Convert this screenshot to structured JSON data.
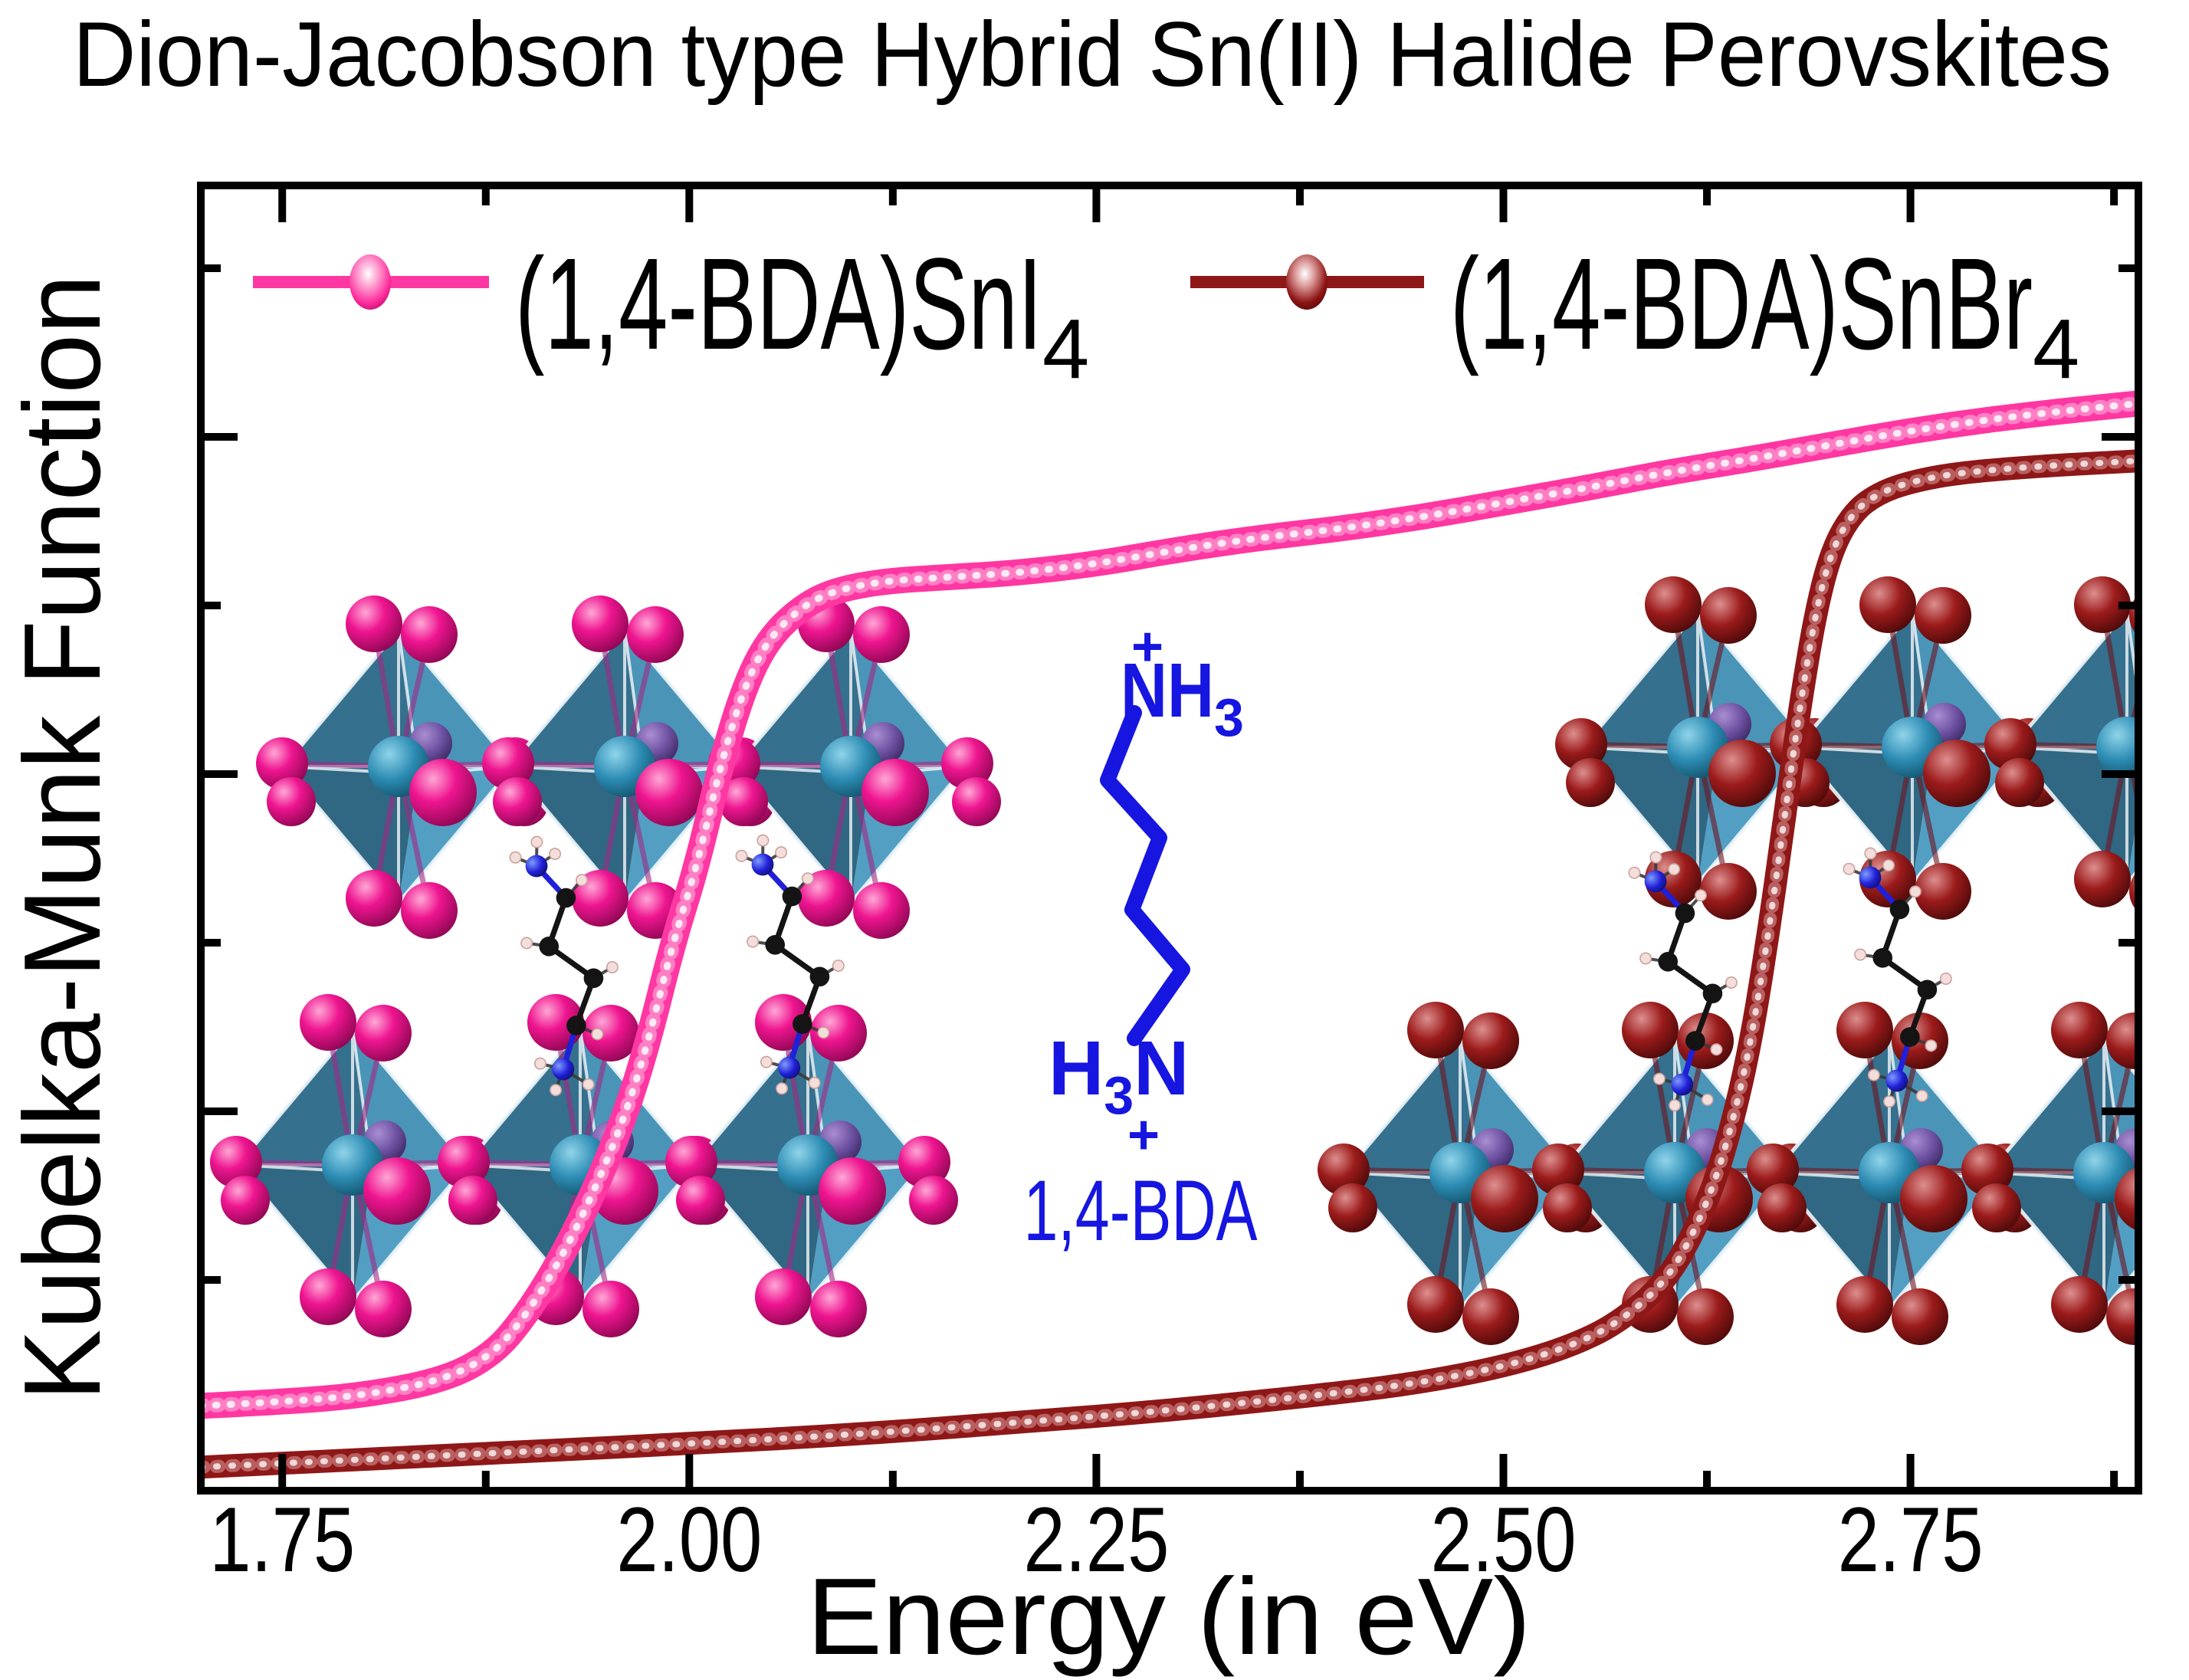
{
  "title": "Dion-Jacobson type Hybrid Sn(II) Halide Perovskites",
  "axes": {
    "x_label": "Energy (in eV)",
    "y_label": "Kubelka-Munk Function",
    "x_ticks": [
      "1.75",
      "2.00",
      "2.25",
      "2.50",
      "2.75"
    ],
    "x_tick_values": [
      1.75,
      2.0,
      2.25,
      2.5,
      2.75
    ],
    "x_minor_tick_values": [
      1.875,
      2.125,
      2.375,
      2.625,
      2.875
    ],
    "x_range": [
      1.7,
      2.89
    ],
    "y_tick_labels_shown": false
  },
  "legend": {
    "entries": [
      {
        "label_main": "(1,4-BDA)SnI",
        "label_sub": "4",
        "color": "#ff37a2"
      },
      {
        "label_main": "(1,4-BDA)SnBr",
        "label_sub": "4",
        "color": "#8e1717"
      }
    ]
  },
  "molecule": {
    "charge_top": "+",
    "amine_top_main": "NH",
    "amine_top_sub": "3",
    "amine_bottom_h": "H",
    "amine_bottom_sub": "3",
    "amine_bottom_n": "N",
    "charge_bottom": "+",
    "name": "1,4-BDA",
    "color": "#1616e0"
  },
  "insets": [
    {
      "name": "(1,4-BDA)SnI4 layered perovskite structure",
      "halide_color": "#e91c8c",
      "octahedra_color": "#2e7ba1"
    },
    {
      "name": "(1,4-BDA)SnBr4 layered perovskite structure",
      "halide_color": "#9c1b1b",
      "octahedra_color": "#2e7ba1"
    }
  ],
  "chart_data": {
    "type": "line",
    "title": "Dion-Jacobson type Hybrid Sn(II) Halide Perovskites",
    "xlabel": "Energy (in eV)",
    "ylabel": "Kubelka-Munk Function",
    "xlim": [
      1.7,
      2.89
    ],
    "ylim": [
      0,
      1
    ],
    "grid": false,
    "legend_position": "top-inside",
    "y_units": "arbitrary units (no numeric y ticks shown)",
    "series": [
      {
        "name": "(1,4-BDA)SnI4",
        "color": "#ff37a2",
        "marker": "beaded-spheres",
        "x": [
          1.7,
          1.75,
          1.8,
          1.85,
          1.88,
          1.9,
          1.92,
          1.94,
          1.96,
          1.975,
          1.99,
          2.005,
          2.02,
          2.035,
          2.05,
          2.07,
          2.09,
          2.12,
          2.16,
          2.2,
          2.25,
          2.3,
          2.35,
          2.4,
          2.45,
          2.5,
          2.55,
          2.6,
          2.65,
          2.7,
          2.75,
          2.8,
          2.85,
          2.89
        ],
        "y": [
          0.065,
          0.068,
          0.073,
          0.085,
          0.105,
          0.135,
          0.175,
          0.225,
          0.285,
          0.345,
          0.42,
          0.48,
          0.56,
          0.62,
          0.655,
          0.678,
          0.69,
          0.697,
          0.7,
          0.703,
          0.71,
          0.721,
          0.73,
          0.737,
          0.746,
          0.757,
          0.768,
          0.78,
          0.79,
          0.801,
          0.812,
          0.821,
          0.828,
          0.833
        ]
      },
      {
        "name": "(1,4-BDA)SnBr4",
        "color": "#8e1717",
        "marker": "beaded-spheres",
        "x": [
          1.7,
          1.8,
          1.9,
          2.0,
          2.1,
          2.2,
          2.3,
          2.4,
          2.45,
          2.5,
          2.54,
          2.57,
          2.6,
          2.62,
          2.635,
          2.65,
          2.662,
          2.672,
          2.682,
          2.692,
          2.702,
          2.715,
          2.73,
          2.75,
          2.78,
          2.83,
          2.89
        ],
        "y": [
          0.018,
          0.024,
          0.03,
          0.036,
          0.043,
          0.052,
          0.062,
          0.075,
          0.083,
          0.095,
          0.11,
          0.128,
          0.16,
          0.205,
          0.255,
          0.33,
          0.42,
          0.51,
          0.6,
          0.675,
          0.722,
          0.75,
          0.764,
          0.773,
          0.78,
          0.785,
          0.789
        ]
      }
    ]
  }
}
